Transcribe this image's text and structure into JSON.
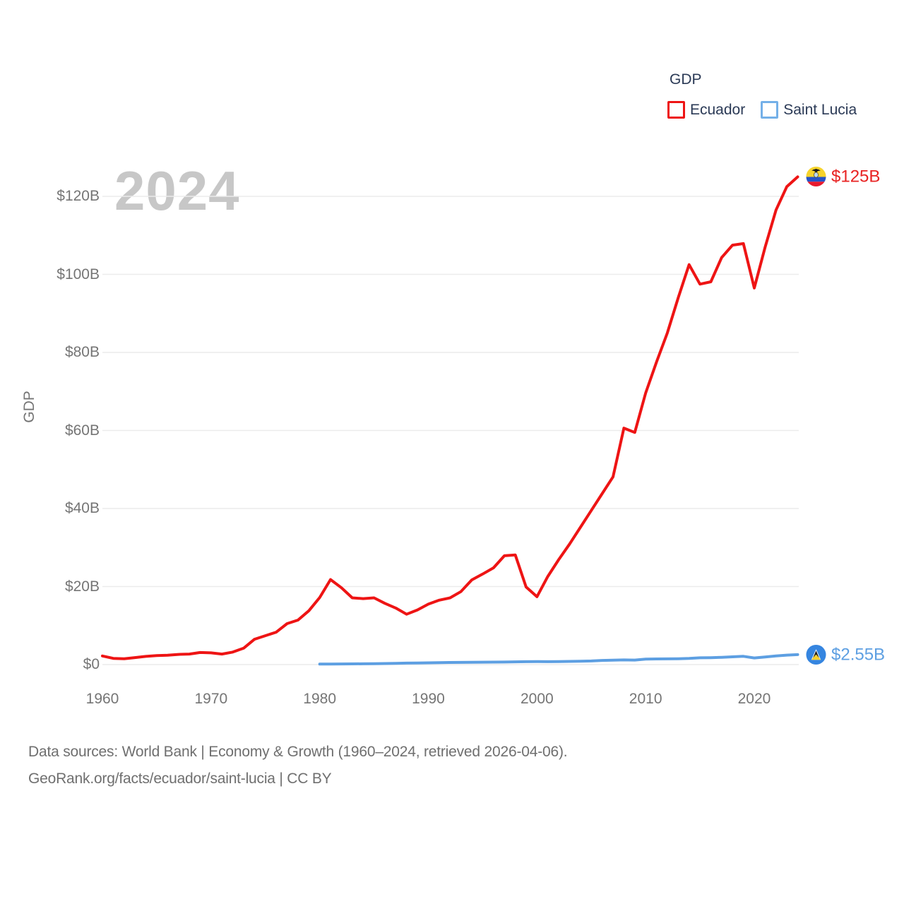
{
  "legend": {
    "title": "GDP",
    "items": [
      {
        "label": "Ecuador",
        "color": "#ee1414"
      },
      {
        "label": "Saint Lucia",
        "color": "#74b0e8"
      }
    ]
  },
  "watermark_year": "2024",
  "end_labels": [
    {
      "series": "Ecuador",
      "text": "$125B",
      "color": "#e82222",
      "flag": "ecuador-flag"
    },
    {
      "series": "Saint Lucia",
      "text": "$2.55B",
      "color": "#5d9fe2",
      "flag": "saint-lucia-flag"
    }
  ],
  "footer": {
    "line1": "Data sources: World Bank | Economy & Growth (1960–2024, retrieved 2026-04-06).",
    "line2": "GeoRank.org/facts/ecuador/saint-lucia | CC BY"
  },
  "chart_data": {
    "type": "line",
    "title": "GDP",
    "xlabel": "",
    "ylabel": "GDP",
    "unit": "billions of current US$",
    "xlim": [
      1960,
      2024
    ],
    "ylim": [
      0,
      130
    ],
    "grid": "horizontal",
    "legend_position": "top-right",
    "x_ticks": [
      "1960",
      "1970",
      "1980",
      "1990",
      "2000",
      "2010",
      "2020"
    ],
    "y_ticks": [
      {
        "value": 0,
        "label": "$0"
      },
      {
        "value": 20,
        "label": "$20B"
      },
      {
        "value": 40,
        "label": "$40B"
      },
      {
        "value": 60,
        "label": "$60B"
      },
      {
        "value": 80,
        "label": "$80B"
      },
      {
        "value": 100,
        "label": "$100B"
      },
      {
        "value": 120,
        "label": "$120B"
      }
    ],
    "series": [
      {
        "name": "Ecuador",
        "color": "#ee1414",
        "start_year": 1960,
        "end_value_label": "$125B",
        "values": [
          2.2,
          1.6,
          1.5,
          1.8,
          2.1,
          2.3,
          2.4,
          2.6,
          2.7,
          3.1,
          3.0,
          2.7,
          3.2,
          4.2,
          6.5,
          7.4,
          8.3,
          10.5,
          11.4,
          13.8,
          17.2,
          21.8,
          19.7,
          17.1,
          16.9,
          17.1,
          15.7,
          14.5,
          12.9,
          14.0,
          15.5,
          16.5,
          17.1,
          18.7,
          21.7,
          23.2,
          24.8,
          27.9,
          28.1,
          19.9,
          17.4,
          22.6,
          26.9,
          30.9,
          35.2,
          39.5,
          43.8,
          48.1,
          60.6,
          59.5,
          69.6,
          77.5,
          85.0,
          94.0,
          102.5,
          97.5,
          98.1,
          104.3,
          107.5,
          107.9,
          96.5,
          107.0,
          116.5,
          122.5,
          125.0
        ]
      },
      {
        "name": "Saint Lucia",
        "color": "#5d9fe2",
        "start_year": 1980,
        "end_value_label": "$2.55B",
        "values": [
          0.13,
          0.15,
          0.16,
          0.18,
          0.2,
          0.24,
          0.28,
          0.32,
          0.38,
          0.42,
          0.46,
          0.5,
          0.54,
          0.56,
          0.58,
          0.61,
          0.64,
          0.66,
          0.7,
          0.74,
          0.78,
          0.75,
          0.76,
          0.82,
          0.87,
          0.93,
          1.06,
          1.14,
          1.19,
          1.16,
          1.4,
          1.44,
          1.46,
          1.51,
          1.57,
          1.73,
          1.77,
          1.87,
          2.0,
          2.12,
          1.71,
          1.95,
          2.23,
          2.43,
          2.55
        ]
      }
    ]
  }
}
